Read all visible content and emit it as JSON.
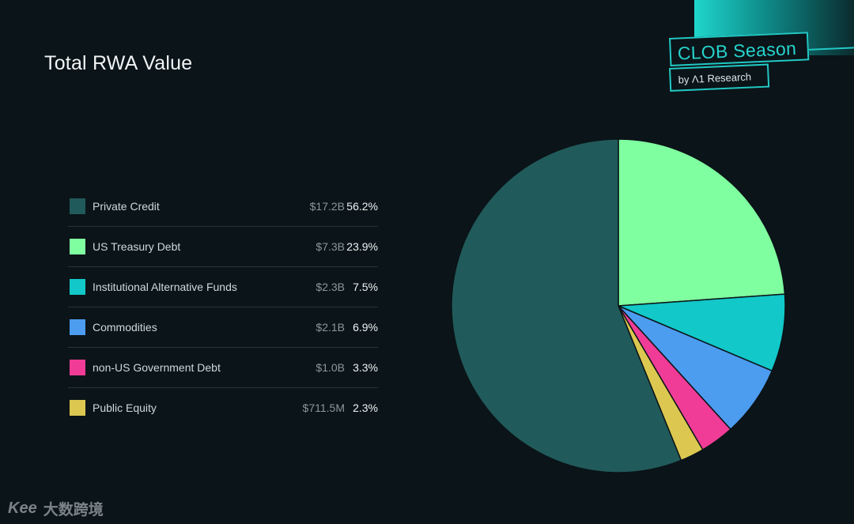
{
  "brand": {
    "name": "CLOB Season",
    "sub": "by Λ1 Research"
  },
  "watermark": {
    "logo": "Kee",
    "text": "大数跨境"
  },
  "chart_data": {
    "type": "pie",
    "title": "Total RWA Value",
    "legend_position": "left",
    "slices": [
      {
        "label": "Private Credit",
        "value_label": "$17.2B",
        "value": 17.2,
        "percent_label": "56.2%",
        "percent": 56.2,
        "color": "#215a5a"
      },
      {
        "label": "US Treasury Debt",
        "value_label": "$7.3B",
        "value": 7.3,
        "percent_label": "23.9%",
        "percent": 23.9,
        "color": "#80ffa0"
      },
      {
        "label": "Institutional Alternative Funds",
        "value_label": "$2.3B",
        "value": 2.3,
        "percent_label": "7.5%",
        "percent": 7.5,
        "color": "#12c8c8"
      },
      {
        "label": "Commodities",
        "value_label": "$2.1B",
        "value": 2.1,
        "percent_label": "6.9%",
        "percent": 6.9,
        "color": "#4c9cf0"
      },
      {
        "label": "non-US Government Debt",
        "value_label": "$1.0B",
        "value": 1.0,
        "percent_label": "3.3%",
        "percent": 3.3,
        "color": "#f03c96"
      },
      {
        "label": "Public Equity",
        "value_label": "$711.5M",
        "value": 0.7115,
        "percent_label": "2.3%",
        "percent": 2.3,
        "color": "#dcc850"
      }
    ]
  }
}
